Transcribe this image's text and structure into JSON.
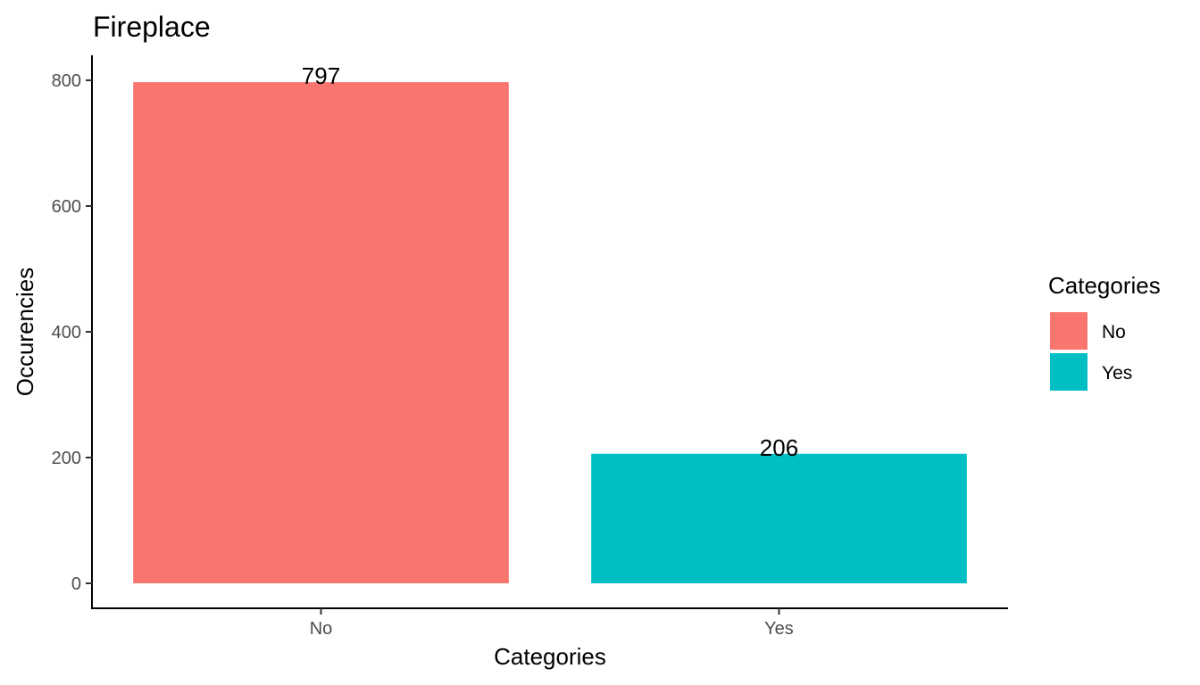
{
  "chart_data": {
    "type": "bar",
    "title": "Fireplace",
    "xlabel": "Categories",
    "ylabel": "Occurencies",
    "categories": [
      "No",
      "Yes"
    ],
    "values": [
      797,
      206
    ],
    "data_labels": [
      "797",
      "206"
    ],
    "colors": [
      "#F8766D",
      "#00BFC4"
    ],
    "ylim": [
      0,
      840
    ],
    "yticks": [
      0,
      200,
      400,
      600,
      800
    ],
    "ytick_labels": [
      "0",
      "200",
      "400",
      "600",
      "800"
    ],
    "grid": false,
    "legend": {
      "title": "Categories",
      "placement": "right",
      "entries": [
        "No",
        "Yes"
      ]
    }
  }
}
